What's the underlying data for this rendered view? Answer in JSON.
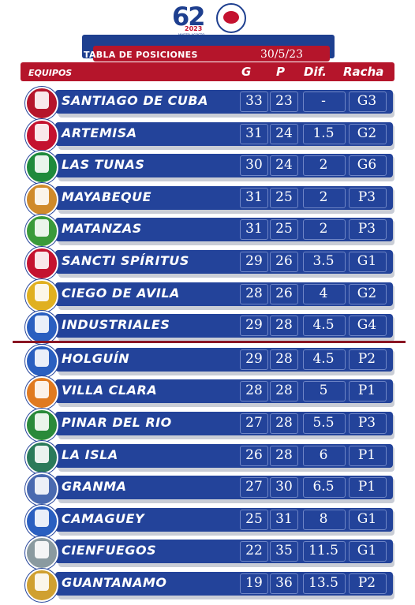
{
  "logo": {
    "number": "62",
    "year": "2023",
    "dates": "MARZO-AGOSTO",
    "badge_icon": "serie-nacional-badge-icon",
    "colors": {
      "blue": "#1e3f8f",
      "red": "#c4122f"
    }
  },
  "title": "TABLA DE POSICIONES",
  "date": "30/5/23",
  "headers": {
    "team": "EQUIPOS",
    "g": "G",
    "p": "P",
    "dif": "Dif.",
    "racha": "Racha"
  },
  "colors": {
    "band": "#23439a",
    "header": "#b5152b",
    "divider": "#8a1523"
  },
  "teams": [
    {
      "name": "SANTIAGO DE CUBA",
      "g": "33",
      "p": "23",
      "dif": "-",
      "racha": "G3",
      "logo_icon": "santiago-logo-icon",
      "logo_color": "#b5152b"
    },
    {
      "name": "ARTEMISA",
      "g": "31",
      "p": "24",
      "dif": "1.5",
      "racha": "G2",
      "logo_icon": "artemisa-logo-icon",
      "logo_color": "#c4122f"
    },
    {
      "name": "LAS TUNAS",
      "g": "30",
      "p": "24",
      "dif": "2",
      "racha": "G6",
      "logo_icon": "las-tunas-logo-icon",
      "logo_color": "#1f8a3c"
    },
    {
      "name": "MAYABEQUE",
      "g": "31",
      "p": "25",
      "dif": "2",
      "racha": "P3",
      "logo_icon": "mayabeque-logo-icon",
      "logo_color": "#d08a2a"
    },
    {
      "name": "MATANZAS",
      "g": "31",
      "p": "25",
      "dif": "2",
      "racha": "P3",
      "logo_icon": "matanzas-logo-icon",
      "logo_color": "#3a9a3a"
    },
    {
      "name": "SANCTI SPÍRITUS",
      "g": "29",
      "p": "26",
      "dif": "3.5",
      "racha": "G1",
      "logo_icon": "sancti-spiritus-logo-icon",
      "logo_color": "#c4122f"
    },
    {
      "name": "CIEGO DE AVILA",
      "g": "28",
      "p": "26",
      "dif": "4",
      "racha": "G2",
      "logo_icon": "ciego-de-avila-logo-icon",
      "logo_color": "#e0b020"
    },
    {
      "name": "INDUSTRIALES",
      "g": "29",
      "p": "28",
      "dif": "4.5",
      "racha": "G4",
      "logo_icon": "industriales-logo-icon",
      "logo_color": "#2a5fc0"
    },
    {
      "name": "HOLGUÍN",
      "g": "29",
      "p": "28",
      "dif": "4.5",
      "racha": "P2",
      "logo_icon": "holguin-logo-icon",
      "logo_color": "#2a5fc0"
    },
    {
      "name": "VILLA CLARA",
      "g": "28",
      "p": "28",
      "dif": "5",
      "racha": "P1",
      "logo_icon": "villa-clara-logo-icon",
      "logo_color": "#e07a20"
    },
    {
      "name": "PINAR DEL RIO",
      "g": "27",
      "p": "28",
      "dif": "5.5",
      "racha": "P3",
      "logo_icon": "pinar-del-rio-logo-icon",
      "logo_color": "#2a8a3a"
    },
    {
      "name": "LA ISLA",
      "g": "26",
      "p": "28",
      "dif": "6",
      "racha": "P1",
      "logo_icon": "la-isla-logo-icon",
      "logo_color": "#2a7a5a"
    },
    {
      "name": "GRANMA",
      "g": "27",
      "p": "30",
      "dif": "6.5",
      "racha": "P1",
      "logo_icon": "granma-logo-icon",
      "logo_color": "#4a6ab0"
    },
    {
      "name": "CAMAGUEY",
      "g": "25",
      "p": "31",
      "dif": "8",
      "racha": "G1",
      "logo_icon": "camaguey-logo-icon",
      "logo_color": "#2a5fc0"
    },
    {
      "name": "CIENFUEGOS",
      "g": "22",
      "p": "35",
      "dif": "11.5",
      "racha": "G1",
      "logo_icon": "cienfuegos-logo-icon",
      "logo_color": "#8a9aa0"
    },
    {
      "name": "GUANTANAMO",
      "g": "19",
      "p": "36",
      "dif": "13.5",
      "racha": "P2",
      "logo_icon": "guantanamo-logo-icon",
      "logo_color": "#d0a030"
    }
  ]
}
